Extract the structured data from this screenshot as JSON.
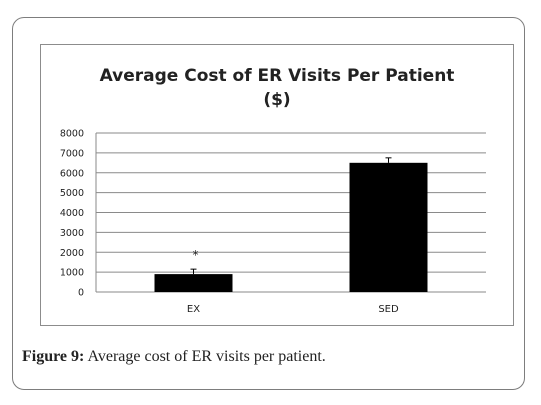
{
  "chart_data": {
    "type": "bar",
    "title_line1": "Average  Cost of ER Visits  Per Patient",
    "title_line2": "($)",
    "categories": [
      "EX",
      "SED"
    ],
    "values": [
      900,
      6500
    ],
    "error": [
      250,
      250
    ],
    "annotations": [
      {
        "category": "EX",
        "text": "*"
      }
    ],
    "ylim": [
      0,
      8000
    ],
    "yticks": [
      0,
      1000,
      2000,
      3000,
      4000,
      5000,
      6000,
      7000,
      8000
    ],
    "grid": true,
    "bar_color": "#000000"
  },
  "caption": {
    "label": "Figure 9:",
    "text": " Average cost of ER visits per patient."
  }
}
